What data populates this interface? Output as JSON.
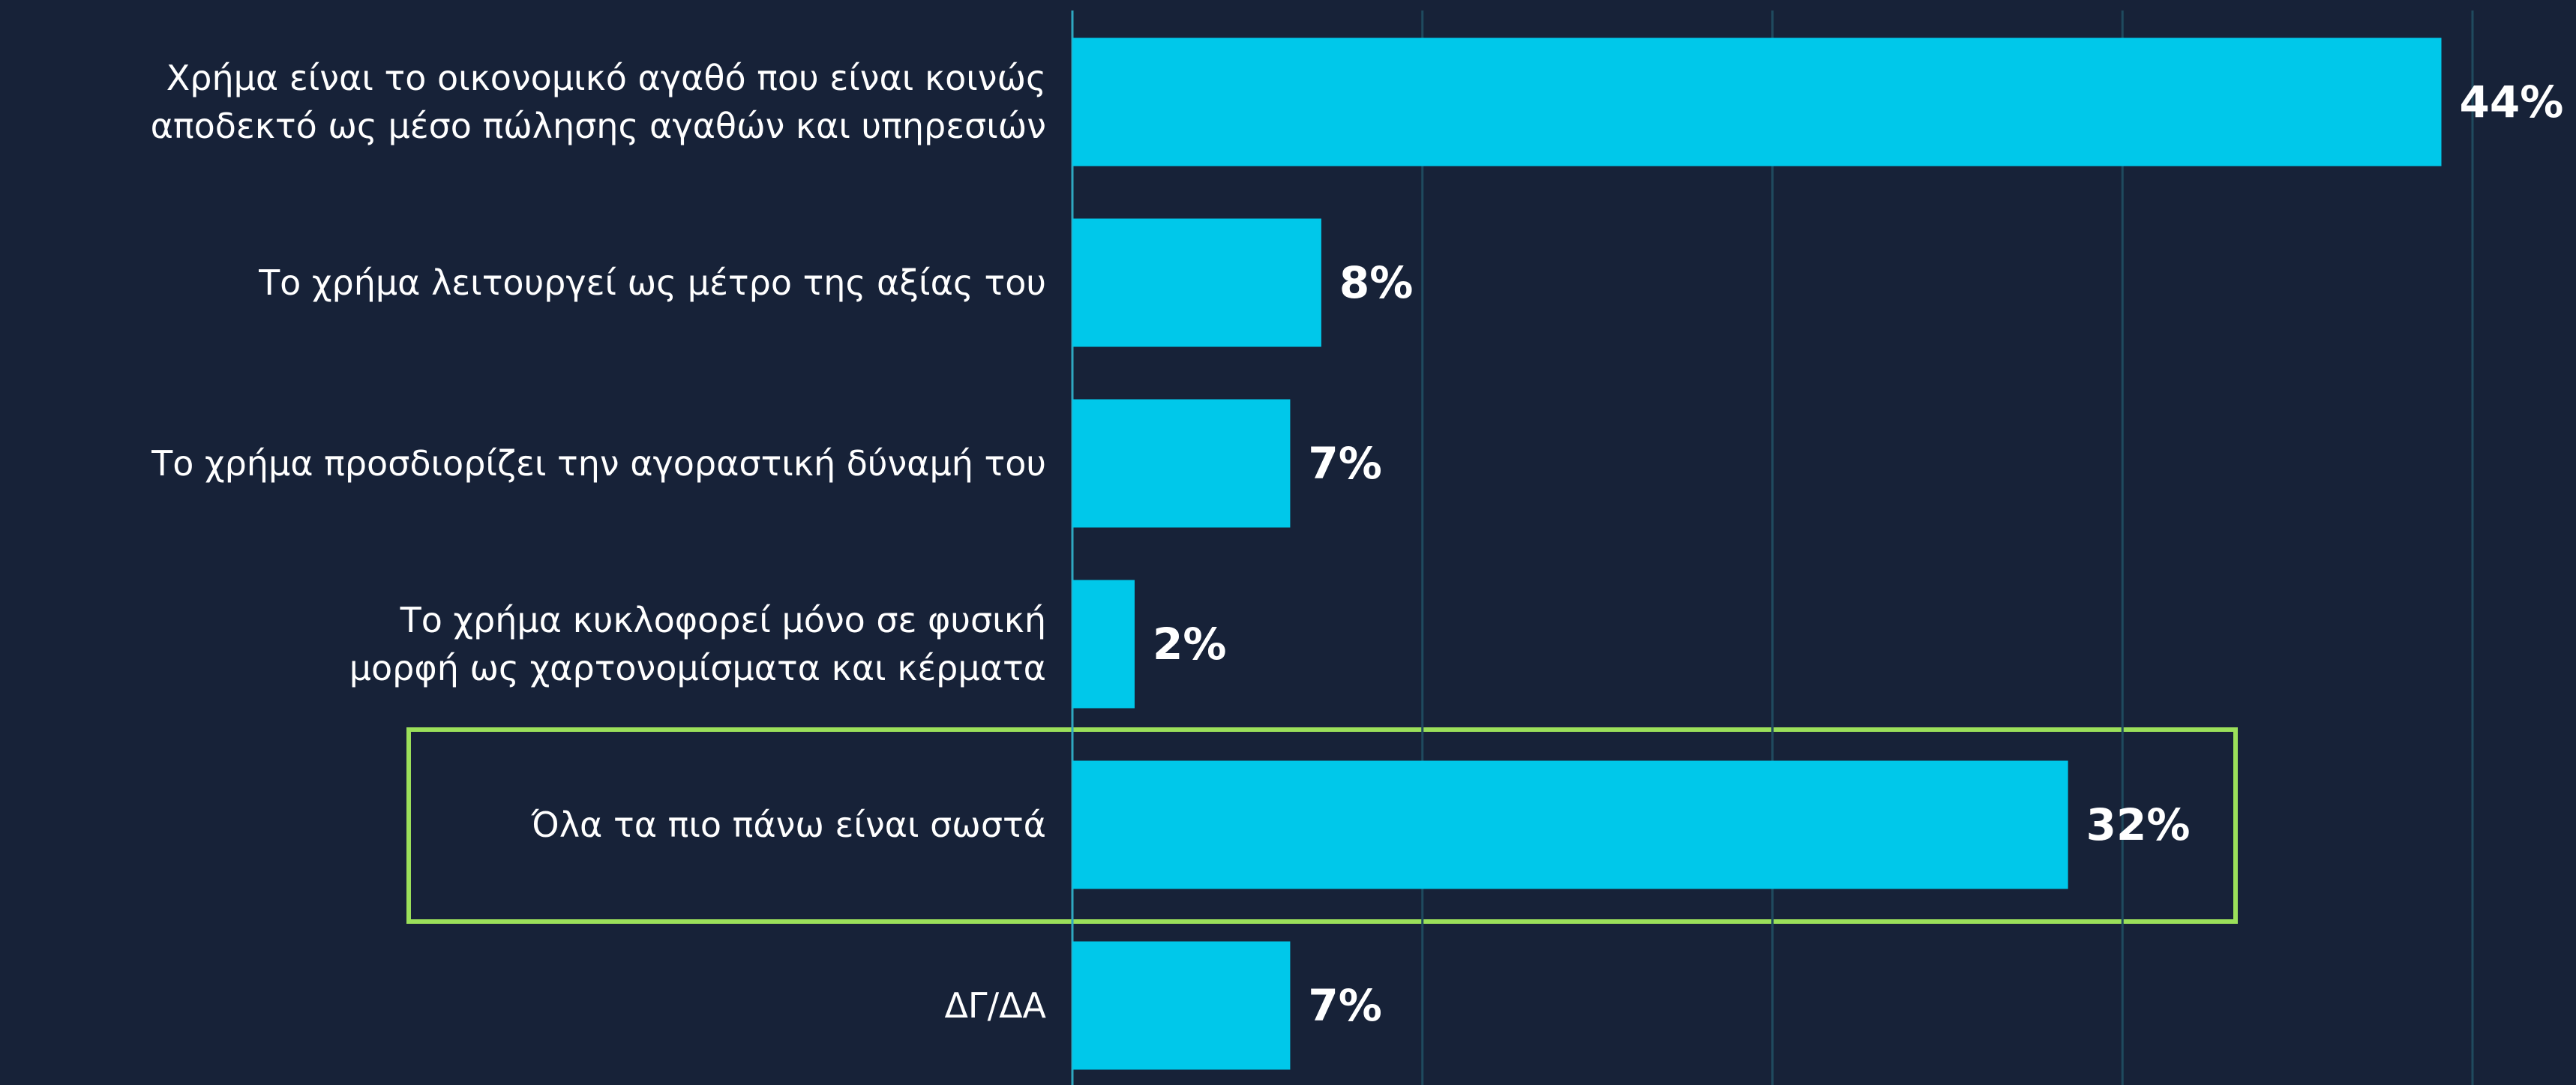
{
  "chart_data": {
    "type": "bar",
    "orientation": "horizontal",
    "categories": [
      "Χρήμα είναι το οικονομικό αγαθό που είναι κοινώς\nαποδεκτό ως μέσο πώλησης αγαθών και υπηρεσιών",
      "Το χρήμα λειτουργεί ως μέτρο της αξίας του",
      "Το χρήμα προσδιορίζει την αγοραστική δύναμή του",
      "Το χρήμα κυκλοφορεί μόνο σε φυσική\nμορφή ως χαρτονομίσματα και κέρματα",
      "Όλα τα πιο πάνω είναι σωστά",
      "ΔΓ/ΔΑ"
    ],
    "values": [
      44,
      8,
      7,
      2,
      32,
      7
    ],
    "value_labels": [
      "44%",
      "8%",
      "7%",
      "2%",
      "32%",
      "7%"
    ],
    "color": "#00c8ea",
    "xlim": [
      0,
      45
    ],
    "xticks": [
      0,
      11.25,
      22.5,
      33.75,
      45
    ],
    "grid": true
  }
}
